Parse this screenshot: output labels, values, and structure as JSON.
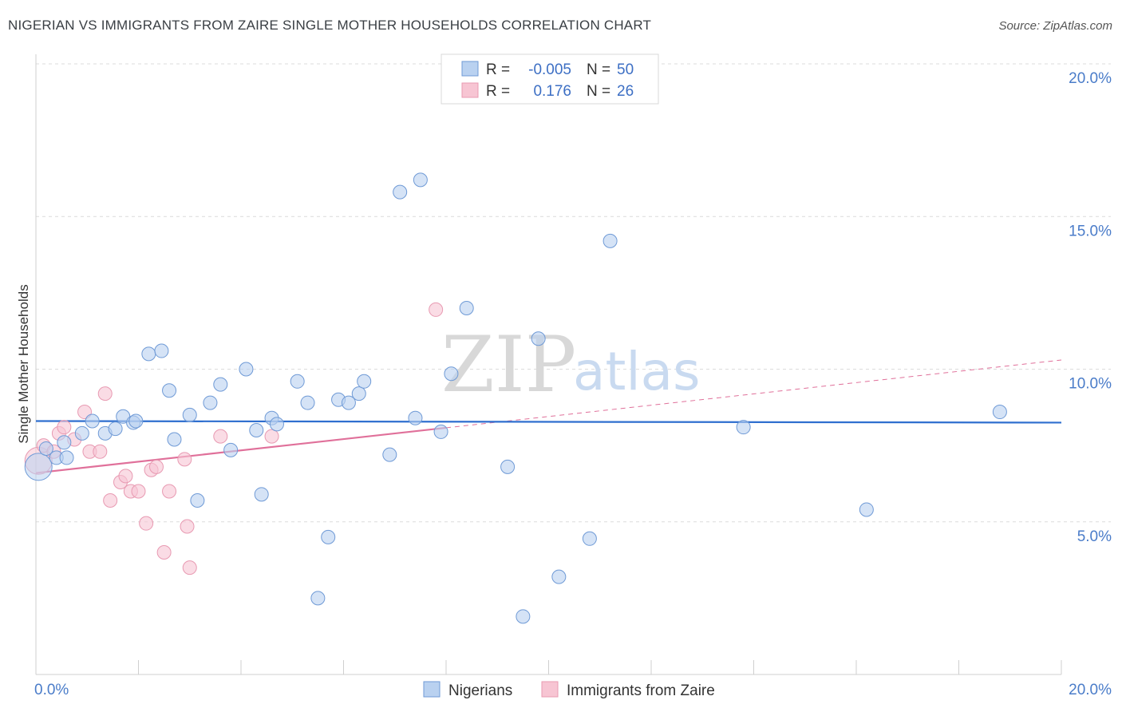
{
  "title": "NIGERIAN VS IMMIGRANTS FROM ZAIRE SINGLE MOTHER HOUSEHOLDS CORRELATION CHART",
  "source": "Source: ZipAtlas.com",
  "watermark": {
    "part1": "ZIP",
    "part2": "atlas"
  },
  "legend_box": {
    "rows": [
      {
        "r_label": "R =",
        "r_value": "-0.005",
        "n_label": "N =",
        "n_value": "50"
      },
      {
        "r_label": "R =",
        "r_value": "0.176",
        "n_label": "N =",
        "n_value": "26"
      }
    ]
  },
  "colors": {
    "blue_fill": "#b9d1f0",
    "blue_stroke": "#6f9ad6",
    "blue_line": "#2f6fcf",
    "pink_fill": "#f7c5d3",
    "pink_stroke": "#e89ab2",
    "pink_line": "#e0709a",
    "grid": "#dcdcdc",
    "axis_text": "#4a7cc9"
  },
  "chart_data": {
    "type": "scatter",
    "title": "NIGERIAN VS IMMIGRANTS FROM ZAIRE SINGLE MOTHER HOUSEHOLDS CORRELATION CHART",
    "xlabel": "",
    "ylabel": "Single Mother Households",
    "xlim": [
      0,
      20
    ],
    "ylim": [
      0,
      20
    ],
    "x_tick_labels": [
      "0.0%",
      "20.0%"
    ],
    "y_tick_labels": [
      "5.0%",
      "10.0%",
      "15.0%",
      "20.0%"
    ],
    "y_ticks": [
      5,
      10,
      15,
      20
    ],
    "series": [
      {
        "name": "Nigerians",
        "color": "blue",
        "r": -0.005,
        "n": 50,
        "trend": {
          "x": [
            0,
            20
          ],
          "y": [
            8.3,
            8.25
          ],
          "style": "solid"
        },
        "points": [
          [
            0.05,
            6.8,
            1
          ],
          [
            0.2,
            7.4,
            0
          ],
          [
            0.4,
            7.1,
            0
          ],
          [
            0.55,
            7.6,
            0
          ],
          [
            0.6,
            7.1,
            0
          ],
          [
            0.9,
            7.9,
            0
          ],
          [
            1.1,
            8.3,
            0
          ],
          [
            1.35,
            7.9,
            0
          ],
          [
            1.55,
            8.05,
            0
          ],
          [
            1.7,
            8.45,
            0
          ],
          [
            1.9,
            8.25,
            0
          ],
          [
            1.95,
            8.3,
            0
          ],
          [
            2.2,
            10.5,
            0
          ],
          [
            2.45,
            10.6,
            0
          ],
          [
            2.6,
            9.3,
            0
          ],
          [
            2.7,
            7.7,
            0
          ],
          [
            3.0,
            8.5,
            0
          ],
          [
            3.15,
            5.7,
            0
          ],
          [
            3.4,
            8.9,
            0
          ],
          [
            3.6,
            9.5,
            0
          ],
          [
            3.8,
            7.35,
            0
          ],
          [
            4.1,
            10.0,
            0
          ],
          [
            4.3,
            8.0,
            0
          ],
          [
            4.4,
            5.9,
            0
          ],
          [
            4.6,
            8.4,
            0
          ],
          [
            4.7,
            8.2,
            0
          ],
          [
            5.1,
            9.6,
            0
          ],
          [
            5.3,
            8.9,
            0
          ],
          [
            5.5,
            2.5,
            0
          ],
          [
            5.7,
            4.5,
            0
          ],
          [
            5.9,
            9.0,
            0
          ],
          [
            6.1,
            8.9,
            0
          ],
          [
            6.3,
            9.2,
            0
          ],
          [
            6.4,
            9.6,
            0
          ],
          [
            6.9,
            7.2,
            0
          ],
          [
            7.1,
            15.8,
            0
          ],
          [
            7.4,
            8.4,
            0
          ],
          [
            7.5,
            16.2,
            0
          ],
          [
            7.9,
            7.95,
            0
          ],
          [
            8.1,
            9.85,
            0
          ],
          [
            8.4,
            12.0,
            0
          ],
          [
            9.2,
            6.8,
            0
          ],
          [
            9.5,
            1.9,
            0
          ],
          [
            9.8,
            11.0,
            0
          ],
          [
            10.2,
            3.2,
            0
          ],
          [
            10.8,
            4.45,
            0
          ],
          [
            11.2,
            14.2,
            0
          ],
          [
            13.8,
            8.1,
            0
          ],
          [
            16.2,
            5.4,
            0
          ],
          [
            18.8,
            8.6,
            0
          ]
        ]
      },
      {
        "name": "Immigrants from Zaire",
        "color": "pink",
        "r": 0.176,
        "n": 26,
        "trend": {
          "x": [
            0,
            20
          ],
          "y": [
            6.6,
            10.3
          ],
          "solid_until": 8.0
        },
        "points": [
          [
            0.05,
            7.0,
            1
          ],
          [
            0.15,
            7.5,
            0
          ],
          [
            0.35,
            7.3,
            0
          ],
          [
            0.45,
            7.9,
            0
          ],
          [
            0.55,
            8.1,
            0
          ],
          [
            0.75,
            7.7,
            0
          ],
          [
            0.95,
            8.6,
            0
          ],
          [
            1.05,
            7.3,
            0
          ],
          [
            1.25,
            7.3,
            0
          ],
          [
            1.35,
            9.2,
            0
          ],
          [
            1.45,
            5.7,
            0
          ],
          [
            1.65,
            6.3,
            0
          ],
          [
            1.75,
            6.5,
            0
          ],
          [
            1.85,
            6.0,
            0
          ],
          [
            2.0,
            6.0,
            0
          ],
          [
            2.15,
            4.95,
            0
          ],
          [
            2.25,
            6.7,
            0
          ],
          [
            2.35,
            6.8,
            0
          ],
          [
            2.5,
            4.0,
            0
          ],
          [
            2.6,
            6.0,
            0
          ],
          [
            2.9,
            7.05,
            0
          ],
          [
            2.95,
            4.85,
            0
          ],
          [
            3.0,
            3.5,
            0
          ],
          [
            3.6,
            7.8,
            0
          ],
          [
            4.6,
            7.8,
            0
          ],
          [
            7.8,
            11.95,
            0
          ]
        ]
      }
    ],
    "legend": [
      "Nigerians",
      "Immigrants from Zaire"
    ]
  }
}
